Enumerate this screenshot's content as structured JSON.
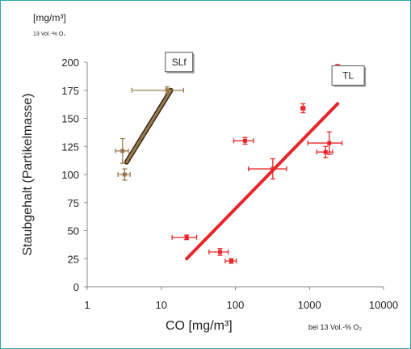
{
  "chart_data": {
    "type": "scatter",
    "x_scale": "log",
    "xlim": [
      1,
      10000
    ],
    "ylim": [
      0,
      200
    ],
    "x_ticks": [
      1,
      10,
      100,
      1000,
      10000
    ],
    "y_ticks": [
      0,
      25,
      50,
      75,
      100,
      125,
      150,
      175,
      200
    ],
    "x_tick_labels": [
      "1",
      "10",
      "100",
      "1000",
      "10000"
    ],
    "y_tick_labels": [
      "0",
      "25",
      "50",
      "75",
      "100",
      "125",
      "150",
      "175",
      "200"
    ],
    "xlabel": "CO   [mg/m³]",
    "xlabel_note": "bei 13 Vol.-% O₂",
    "ylabel": "Staubgehalt (Partikelmasse)",
    "y_unit": "[mg/m³]",
    "y_unit_note": "13 Vol.-% O₂",
    "grid": false,
    "series": [
      {
        "name": "SLf",
        "color": "#9a7b4f",
        "points": [
          {
            "x": 3,
            "y": 121,
            "xerr": 0.6,
            "yerr": 11
          },
          {
            "x": 3.2,
            "y": 100,
            "xerr": 0.6,
            "yerr": 5
          },
          {
            "x": 12,
            "y": 175,
            "xerr": 8,
            "yerr": 3
          }
        ],
        "trend": {
          "x": [
            3.4,
            13.5
          ],
          "y": [
            111,
            175
          ]
        }
      },
      {
        "name": "TL",
        "color": "#e8262a",
        "points": [
          {
            "x": 22,
            "y": 44,
            "xerr": 8,
            "yerr": 2
          },
          {
            "x": 62,
            "y": 31,
            "xerr": 18,
            "yerr": 3
          },
          {
            "x": 88,
            "y": 23,
            "xerr": 15,
            "yerr": 2
          },
          {
            "x": 135,
            "y": 130,
            "xerr": 40,
            "yerr": 3
          },
          {
            "x": 320,
            "y": 105,
            "xerr": 170,
            "yerr": 9
          },
          {
            "x": 820,
            "y": 159,
            "xerr": 50,
            "yerr": 4
          },
          {
            "x": 1650,
            "y": 120,
            "xerr": 400,
            "yerr": 5
          },
          {
            "x": 1850,
            "y": 128,
            "xerr": 900,
            "yerr": 10
          },
          {
            "x": 2400,
            "y": 193,
            "xerr": 200,
            "yerr": 5
          }
        ],
        "trend": {
          "x": [
            22,
            2400
          ],
          "y": [
            25,
            163
          ]
        }
      }
    ]
  }
}
